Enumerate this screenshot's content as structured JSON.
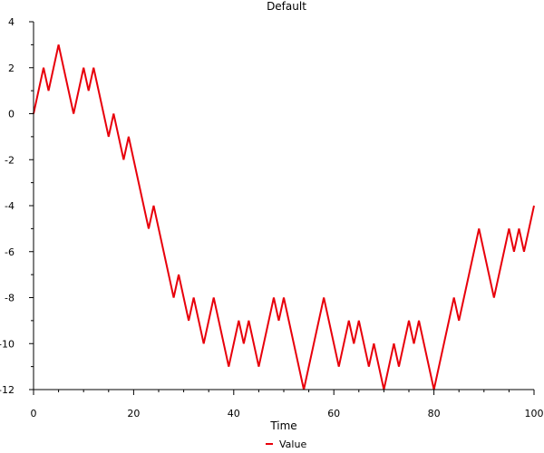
{
  "chart_data": {
    "type": "line",
    "title": "Default",
    "xlabel": "Time",
    "ylabel": "",
    "xlim": [
      0,
      100
    ],
    "ylim": [
      -12,
      4
    ],
    "xticks": [
      0,
      20,
      40,
      60,
      80,
      100
    ],
    "yticks": [
      4,
      2,
      0,
      -2,
      -4,
      -6,
      -8,
      -10,
      -12
    ],
    "grid": false,
    "legend_position": "bottom",
    "series": [
      {
        "name": "Value",
        "color": "#e8000b",
        "x": [
          0,
          1,
          2,
          3,
          4,
          5,
          6,
          7,
          8,
          9,
          10,
          11,
          12,
          13,
          14,
          15,
          16,
          17,
          18,
          19,
          20,
          21,
          22,
          23,
          24,
          25,
          26,
          27,
          28,
          29,
          30,
          31,
          32,
          33,
          34,
          35,
          36,
          37,
          38,
          39,
          40,
          41,
          42,
          43,
          44,
          45,
          46,
          47,
          48,
          49,
          50,
          51,
          52,
          53,
          54,
          55,
          56,
          57,
          58,
          59,
          60,
          61,
          62,
          63,
          64,
          65,
          66,
          67,
          68,
          69,
          70,
          71,
          72,
          73,
          74,
          75,
          76,
          77,
          78,
          79,
          80,
          81,
          82,
          83,
          84,
          85,
          86,
          87,
          88,
          89,
          90,
          91,
          92,
          93,
          94,
          95,
          96,
          97,
          98,
          99,
          100
        ],
        "values": [
          0,
          1,
          2,
          1,
          2,
          3,
          2,
          1,
          0,
          1,
          2,
          1,
          2,
          1,
          0,
          -1,
          0,
          -1,
          -2,
          -1,
          -2,
          -3,
          -4,
          -5,
          -4,
          -5,
          -6,
          -7,
          -8,
          -7,
          -8,
          -9,
          -8,
          -9,
          -10,
          -9,
          -8,
          -9,
          -10,
          -11,
          -10,
          -9,
          -10,
          -9,
          -10,
          -11,
          -10,
          -9,
          -8,
          -9,
          -8,
          -9,
          -10,
          -11,
          -12,
          -11,
          -10,
          -9,
          -8,
          -9,
          -10,
          -11,
          -10,
          -9,
          -10,
          -9,
          -10,
          -11,
          -10,
          -11,
          -12,
          -11,
          -10,
          -11,
          -10,
          -9,
          -10,
          -9,
          -10,
          -11,
          -12,
          -11,
          -10,
          -9,
          -8,
          -9,
          -8,
          -7,
          -6,
          -5,
          -6,
          -7,
          -8,
          -7,
          -6,
          -5,
          -6,
          -5,
          -6,
          -5,
          -4
        ]
      }
    ]
  }
}
